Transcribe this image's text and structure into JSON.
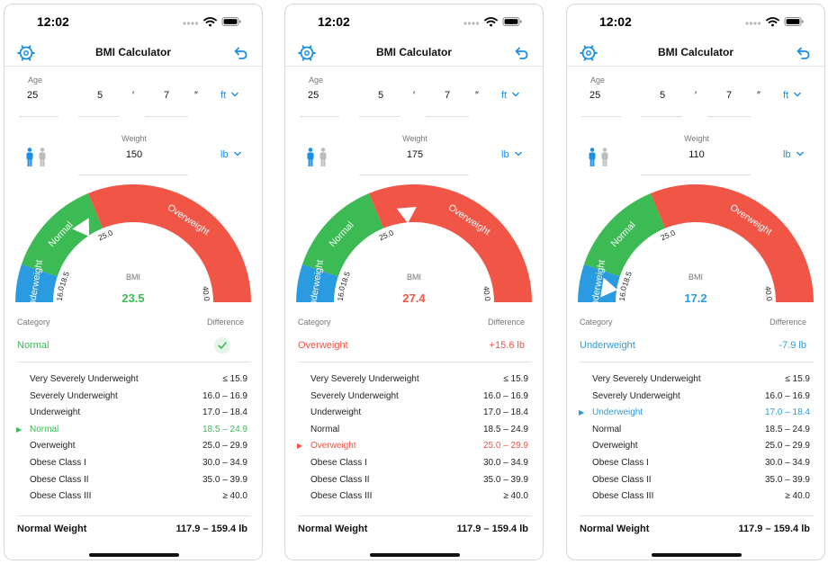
{
  "screens": [
    {
      "status": {
        "time": "12:02"
      },
      "nav": {
        "title": "BMI Calculator"
      },
      "inputs": {
        "age_label": "Age",
        "age": "25",
        "feet": "5",
        "feet_mark": "′",
        "inches": "7",
        "inches_mark": "″",
        "height_unit": "ft",
        "weight_label": "Weight",
        "weight": "150",
        "weight_unit": "lb"
      },
      "gauge": {
        "bmi_label": "BMI",
        "bmi_value": "23.5",
        "bmi": 23.5,
        "value_color": "#3cba54",
        "segments": {
          "underweight": "Underweight",
          "normal": "Normal",
          "overweight": "Overweight"
        },
        "ticks": {
          "t160": "16.0",
          "t185": "18.5",
          "t250": "25.0",
          "t400": "40.0"
        }
      },
      "result": {
        "category_label": "Category",
        "difference_label": "Difference",
        "category": "Normal",
        "difference": "",
        "difference_check": true,
        "color": "#3cba54"
      },
      "table": {
        "active_index": 3,
        "rows": [
          {
            "label": "Very Severely Underweight",
            "range": "≤ 15.9"
          },
          {
            "label": "Severely Underweight",
            "range": "16.0 – 16.9"
          },
          {
            "label": "Underweight",
            "range": "17.0 – 18.4"
          },
          {
            "label": "Normal",
            "range": "18.5 – 24.9"
          },
          {
            "label": "Overweight",
            "range": "25.0 – 29.9"
          },
          {
            "label": "Obese Class I",
            "range": "30.0 – 34.9"
          },
          {
            "label": "Obese Class II",
            "range": "35.0 – 39.9"
          },
          {
            "label": "Obese Class III",
            "range": "≥ 40.0"
          }
        ]
      },
      "footer": {
        "label": "Normal Weight",
        "value": "117.9 – 159.4 lb"
      }
    },
    {
      "status": {
        "time": "12:02"
      },
      "nav": {
        "title": "BMI Calculator"
      },
      "inputs": {
        "age_label": "Age",
        "age": "25",
        "feet": "5",
        "feet_mark": "′",
        "inches": "7",
        "inches_mark": "″",
        "height_unit": "ft",
        "weight_label": "Weight",
        "weight": "175",
        "weight_unit": "lb"
      },
      "gauge": {
        "bmi_label": "BMI",
        "bmi_value": "27.4",
        "bmi": 27.4,
        "value_color": "#f05545",
        "segments": {
          "underweight": "Underweight",
          "normal": "Normal",
          "overweight": "Overweight"
        },
        "ticks": {
          "t160": "16.0",
          "t185": "18.5",
          "t250": "25.0",
          "t400": "40.0"
        }
      },
      "result": {
        "category_label": "Category",
        "difference_label": "Difference",
        "category": "Overweight",
        "difference": "+15.6 lb",
        "difference_check": false,
        "color": "#f05545"
      },
      "table": {
        "active_index": 4,
        "rows": [
          {
            "label": "Very Severely Underweight",
            "range": "≤ 15.9"
          },
          {
            "label": "Severely Underweight",
            "range": "16.0 – 16.9"
          },
          {
            "label": "Underweight",
            "range": "17.0 – 18.4"
          },
          {
            "label": "Normal",
            "range": "18.5 – 24.9"
          },
          {
            "label": "Overweight",
            "range": "25.0 – 29.9"
          },
          {
            "label": "Obese Class I",
            "range": "30.0 – 34.9"
          },
          {
            "label": "Obese Class II",
            "range": "35.0 – 39.9"
          },
          {
            "label": "Obese Class III",
            "range": "≥ 40.0"
          }
        ]
      },
      "footer": {
        "label": "Normal Weight",
        "value": "117.9 – 159.4 lb"
      }
    },
    {
      "status": {
        "time": "12:02"
      },
      "nav": {
        "title": "BMI Calculator"
      },
      "inputs": {
        "age_label": "Age",
        "age": "25",
        "feet": "5",
        "feet_mark": "′",
        "inches": "7",
        "inches_mark": "″",
        "height_unit": "ft",
        "weight_label": "Weight",
        "weight": "110",
        "weight_unit": "lb"
      },
      "gauge": {
        "bmi_label": "BMI",
        "bmi_value": "17.2",
        "bmi": 17.2,
        "value_color": "#2a9be0",
        "segments": {
          "underweight": "Underweight",
          "normal": "Normal",
          "overweight": "Overweight"
        },
        "ticks": {
          "t160": "16.0",
          "t185": "18.5",
          "t250": "25.0",
          "t400": "40.0"
        }
      },
      "result": {
        "category_label": "Category",
        "difference_label": "Difference",
        "category": "Underweight",
        "difference": "-7.9 lb",
        "difference_check": false,
        "color": "#2a9be0"
      },
      "table": {
        "active_index": 2,
        "rows": [
          {
            "label": "Very Severely Underweight",
            "range": "≤ 15.9"
          },
          {
            "label": "Severely Underweight",
            "range": "16.0 – 16.9"
          },
          {
            "label": "Underweight",
            "range": "17.0 – 18.4"
          },
          {
            "label": "Normal",
            "range": "18.5 – 24.9"
          },
          {
            "label": "Overweight",
            "range": "25.0 – 29.9"
          },
          {
            "label": "Obese Class I",
            "range": "30.0 – 34.9"
          },
          {
            "label": "Obese Class II",
            "range": "35.0 – 39.9"
          },
          {
            "label": "Obese Class III",
            "range": "≥ 40.0"
          }
        ]
      },
      "footer": {
        "label": "Normal Weight",
        "value": "117.9 – 159.4 lb"
      }
    }
  ],
  "colors": {
    "accent": "#1a8fe6",
    "underweight": "#2a9be0",
    "normal": "#3cba54",
    "overweight": "#f05545",
    "text": "#111111",
    "muted": "#777777"
  },
  "icons": {
    "settings": "settings-gear-icon",
    "undo": "undo-arrow-icon",
    "gender": "male-female-icon",
    "check": "checkmark-icon",
    "pointer": "triangle-marker-icon"
  }
}
